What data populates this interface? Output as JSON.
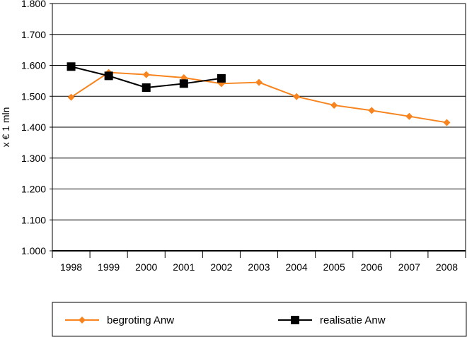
{
  "chart_data": {
    "type": "line",
    "title": "",
    "xlabel": "",
    "ylabel": "x € 1 mln",
    "ylim": [
      1000,
      1800
    ],
    "y_tick_values": [
      1000,
      1100,
      1200,
      1300,
      1400,
      1500,
      1600,
      1700,
      1800
    ],
    "y_tick_labels": [
      "1.000",
      "1.100",
      "1.200",
      "1.300",
      "1.400",
      "1.500",
      "1.600",
      "1.700",
      "1.800"
    ],
    "categories": [
      "1998",
      "1999",
      "2000",
      "2001",
      "2002",
      "2003",
      "2004",
      "2005",
      "2006",
      "2007",
      "2008"
    ],
    "grid": true,
    "legend_position": "bottom",
    "series": [
      {
        "name": "begroting Anw",
        "color": "#f7841e",
        "marker": "diamond",
        "values": [
          1497,
          1577,
          1570,
          1560,
          1541,
          1545,
          1499,
          1471,
          1454,
          1435,
          1415
        ]
      },
      {
        "name": "realisatie Anw",
        "color": "#000000",
        "marker": "square",
        "values": [
          1596,
          1566,
          1528,
          1541,
          1558,
          null,
          null,
          null,
          null,
          null,
          null
        ]
      }
    ]
  }
}
